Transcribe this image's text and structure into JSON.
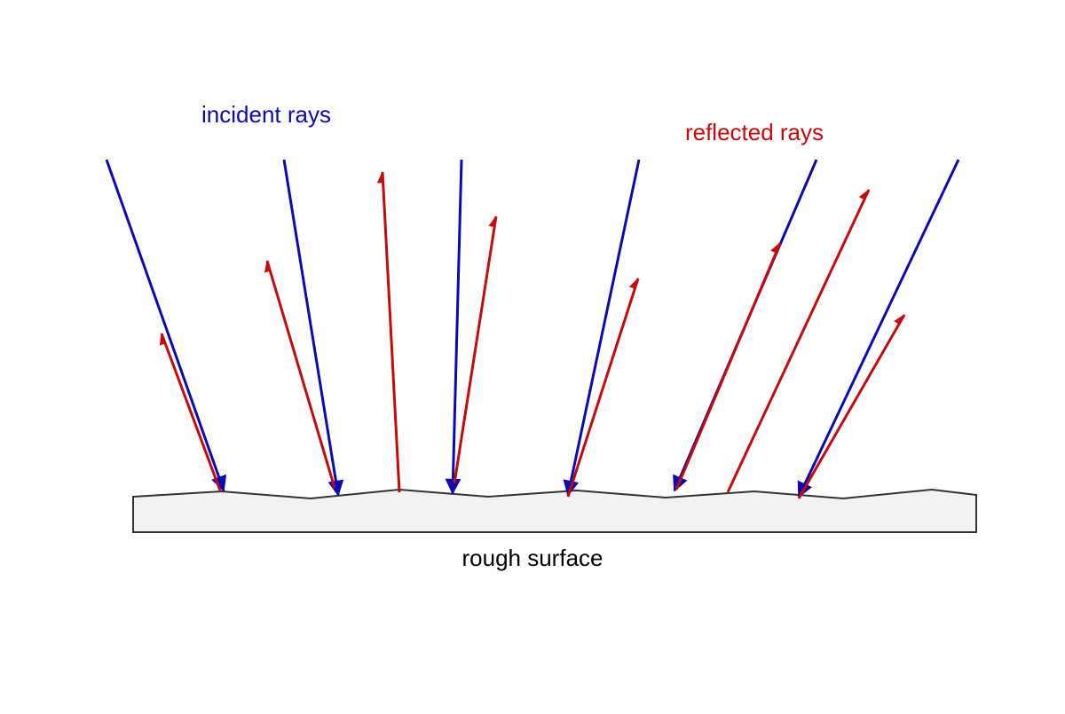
{
  "labels": {
    "incident": "incident rays",
    "reflected": "reflected rays",
    "surface": "rough surface"
  }
}
